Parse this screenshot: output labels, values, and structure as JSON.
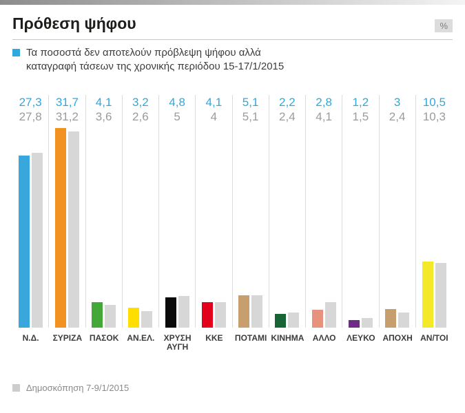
{
  "header": {
    "title": "Πρόθεση ψήφου",
    "percent_badge": "%"
  },
  "legend": {
    "marker_color": "#2EA9DF",
    "line1": "Τα ποσοστά δεν αποτελούν πρόβλεψη ψήφου αλλά",
    "line2": "καταγραφή τάσεων της χρονικής περιόδου 15-17/1/2015"
  },
  "footer": {
    "marker_color": "#cdcdcd",
    "text": "Δημοσκόπηση 7-9/1/2015"
  },
  "chart_data": {
    "type": "bar",
    "title": "Πρόθεση ψήφου",
    "unit": "%",
    "categories": [
      "Ν.Δ.",
      "ΣΥΡΙΖΑ",
      "ΠΑΣΟΚ",
      "ΑΝ.ΕΛ.",
      "ΧΡΥΣΗ ΑΥΓΗ",
      "ΚΚΕ",
      "ΠΟΤΑΜΙ",
      "ΚΙΝΗΜΑ",
      "ΑΛΛΟ",
      "ΛΕΥΚΟ",
      "ΑΠΟΧΗ",
      "ΑΝ/ΤΟΙ"
    ],
    "series": [
      {
        "name": "Καταγραφή τάσεων 15-17/1/2015",
        "values": [
          27.3,
          31.7,
          4.1,
          3.2,
          4.8,
          4.1,
          5.1,
          2.2,
          2.8,
          1.2,
          3,
          10.5
        ],
        "labels": [
          "27,3",
          "31,7",
          "4,1",
          "3,2",
          "4,8",
          "4,1",
          "5,1",
          "2,2",
          "2,8",
          "1,2",
          "3",
          "10,5"
        ],
        "colors": [
          "#38A8DC",
          "#F29222",
          "#44A838",
          "#FFDE00",
          "#0a0a0a",
          "#E2001A",
          "#C79E6E",
          "#176437",
          "#E7917E",
          "#6F2C85",
          "#C79E6E",
          "#F4E928"
        ]
      },
      {
        "name": "Δημοσκόπηση 7-9/1/2015",
        "values": [
          27.8,
          31.2,
          3.6,
          2.6,
          5,
          4,
          5.1,
          2.4,
          4.1,
          1.5,
          2.4,
          10.3
        ],
        "labels": [
          "27,8",
          "31,2",
          "3,6",
          "2,6",
          "5",
          "4",
          "5,1",
          "2,4",
          "4,1",
          "1,5",
          "2,4",
          "10,3"
        ],
        "color": "#D7D7D7"
      }
    ],
    "ylim": [
      0,
      31.7
    ],
    "label_colors": {
      "current": "#2EA9DF",
      "previous": "#9b9b9b"
    },
    "grid": "vertical-separators",
    "legend_position": "top"
  }
}
